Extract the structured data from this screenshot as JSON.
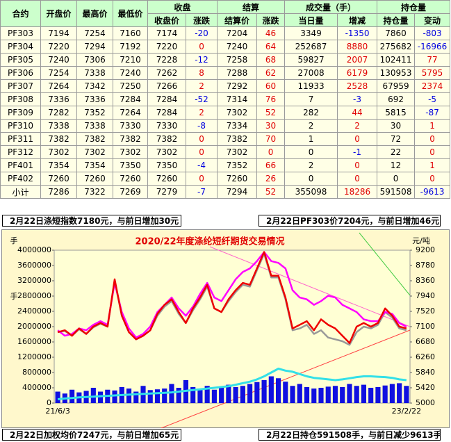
{
  "table": {
    "header": {
      "top": [
        "合约",
        "开盘价",
        "最高价",
        "最低价",
        "收盘",
        "结算",
        "成交量（手）",
        "持仓量"
      ],
      "sub": [
        "收盘价",
        "涨跌",
        "结算价",
        "涨跌",
        "当日量",
        "增减",
        "持仓量",
        "变动"
      ]
    },
    "change_colors": {
      "up": "#e00000",
      "down": "#0000e0"
    },
    "rows": [
      [
        "PF303",
        7194,
        7254,
        7160,
        7174,
        -20,
        7204,
        46,
        3349,
        -1350,
        7860,
        -803
      ],
      [
        "PF304",
        7220,
        7294,
        7192,
        7220,
        0,
        7240,
        64,
        252687,
        8880,
        275682,
        -16966
      ],
      [
        "PF305",
        7240,
        7306,
        7210,
        7228,
        -12,
        7258,
        68,
        59827,
        2007,
        102411,
        77
      ],
      [
        "PF306",
        7254,
        7338,
        7240,
        7262,
        8,
        7288,
        62,
        27008,
        6179,
        130953,
        5795
      ],
      [
        "PF307",
        7264,
        7342,
        7250,
        7266,
        2,
        7292,
        60,
        11933,
        2528,
        67959,
        2374
      ],
      [
        "PF308",
        7336,
        7336,
        7284,
        7284,
        -52,
        7314,
        76,
        7,
        -3,
        692,
        -5
      ],
      [
        "PF309",
        7282,
        7352,
        7264,
        7284,
        2,
        7302,
        52,
        282,
        44,
        5815,
        -87
      ],
      [
        "PF310",
        7338,
        7338,
        7330,
        7330,
        -8,
        7334,
        30,
        2,
        2,
        30,
        1
      ],
      [
        "PF311",
        7382,
        7382,
        7382,
        7382,
        0,
        7382,
        70,
        1,
        0,
        72,
        0
      ],
      [
        "PF312",
        7302,
        7302,
        7302,
        7302,
        0,
        7302,
        0,
        0,
        -1,
        22,
        0
      ],
      [
        "PF401",
        7354,
        7354,
        7350,
        7350,
        -4,
        7352,
        66,
        2,
        0,
        12,
        1
      ],
      [
        "PF402",
        7260,
        7260,
        7260,
        7260,
        0,
        7260,
        26,
        0,
        0,
        0,
        0
      ],
      [
        "小计",
        7286,
        7322,
        7269,
        7279,
        -7,
        7294,
        52,
        355098,
        18286,
        591508,
        -9613
      ]
    ]
  },
  "notes": {
    "top_left": "2月22日涤短指数7180元，与前日增加30元",
    "top_right": "2月22日PF303价7204元，与前日增加46元",
    "bottom_left": "2月22日加权均价7247元，与前日增加65元",
    "bottom_right": "2月22日持仓591508手，与前日减少9613手"
  },
  "chart_data": {
    "type": "combo",
    "title": "2020/22年度涤纶短纤期货交易情况",
    "y_label": "手",
    "y2_label": "元/吨",
    "categories": [
      "21/6/3",
      null,
      null,
      null,
      null,
      null,
      null,
      null,
      null,
      null,
      null,
      null,
      null,
      null,
      null,
      null,
      null,
      null,
      null,
      null,
      null,
      null,
      null,
      null,
      null,
      null,
      null,
      null,
      null,
      null,
      null,
      null,
      null,
      null,
      null,
      null,
      null,
      null,
      null,
      null,
      null,
      null,
      null,
      null,
      null,
      null,
      null,
      null,
      null,
      "23/2/22"
    ],
    "ylim": [
      0,
      4000000
    ],
    "yticks": [
      0,
      400000,
      800000,
      1200000,
      1600000,
      2000000,
      2400000,
      2800000,
      3200000,
      3600000,
      4000000
    ],
    "y2lim": [
      5000,
      9200
    ],
    "y2ticks": [
      5000,
      5420,
      5840,
      6260,
      6680,
      7100,
      7520,
      7940,
      8360,
      8780,
      9200
    ],
    "series": [
      {
        "type": "bar",
        "color": "#1010e0",
        "values": [
          300000,
          250000,
          350000,
          280000,
          320000,
          400000,
          300000,
          350000,
          330000,
          420000,
          380000,
          300000,
          450000,
          340000,
          360000,
          380000,
          500000,
          400000,
          600000,
          420000,
          380000,
          450000,
          350000,
          400000,
          480000,
          420000,
          450000,
          500000,
          550000,
          600000,
          700000,
          650000,
          560000,
          450000,
          500000,
          420000,
          380000,
          400000,
          430000,
          450000,
          420000,
          500000,
          450000,
          480000,
          400000,
          420000,
          460000,
          500000,
          520000,
          450000
        ]
      },
      {
        "type": "line",
        "color": "#33e0e8",
        "values": [
          100000,
          120000,
          130000,
          150000,
          160000,
          170000,
          180000,
          190000,
          200000,
          210000,
          220000,
          230000,
          240000,
          250000,
          260000,
          270000,
          280000,
          300000,
          320000,
          340000,
          360000,
          380000,
          400000,
          420000,
          440000,
          480000,
          520000,
          560000,
          620000,
          700000,
          800000,
          900000,
          850000,
          820000,
          760000,
          700000,
          660000,
          640000,
          620000,
          600000,
          620000,
          650000,
          680000,
          700000,
          700000,
          690000,
          680000,
          660000,
          620000,
          600000
        ]
      },
      {
        "type": "line",
        "axis": "y2",
        "color": "#999999",
        "values": [
          6950,
          6980,
          6850,
          7030,
          6900,
          7080,
          7180,
          7100,
          8350,
          7400,
          6950,
          6750,
          6850,
          7000,
          7400,
          7650,
          7800,
          7450,
          7200,
          7550,
          7850,
          8200,
          7600,
          7500,
          7800,
          8050,
          8250,
          8200,
          8650,
          9100,
          8450,
          8450,
          7850,
          7000,
          7050,
          7150,
          6900,
          7000,
          6800,
          6750,
          6700,
          6600,
          6950,
          7100,
          7050,
          7150,
          7500,
          7350,
          7050,
          7000
        ]
      },
      {
        "type": "line",
        "axis": "y2",
        "color": "#ff00ff",
        "values": [
          7000,
          6850,
          6900,
          7050,
          7000,
          7150,
          7250,
          7150,
          8300,
          7500,
          7050,
          6800,
          6900,
          7100,
          7500,
          7700,
          7900,
          7600,
          7400,
          7650,
          8000,
          8300,
          7900,
          7800,
          8100,
          8400,
          8600,
          8700,
          8900,
          9150,
          8900,
          8850,
          8700,
          8100,
          7900,
          7850,
          7700,
          7800,
          7950,
          7900,
          7700,
          7600,
          7500,
          7300,
          7250,
          7250,
          7500,
          7450,
          7200,
          7100
        ]
      },
      {
        "type": "line",
        "axis": "y2",
        "color": "#ee0000",
        "values": [
          6950,
          7000,
          6850,
          7050,
          6900,
          7100,
          7200,
          7100,
          8400,
          7400,
          6950,
          6750,
          6850,
          7000,
          7450,
          7700,
          7850,
          7500,
          7200,
          7600,
          7900,
          8250,
          7600,
          7500,
          7850,
          8100,
          8300,
          8250,
          8700,
          9150,
          8500,
          8500,
          7900,
          7050,
          7150,
          7250,
          7000,
          7300,
          7150,
          7050,
          6850,
          6650,
          7100,
          7200,
          7100,
          7200,
          7600,
          7400,
          7100,
          7050
        ]
      }
    ]
  }
}
